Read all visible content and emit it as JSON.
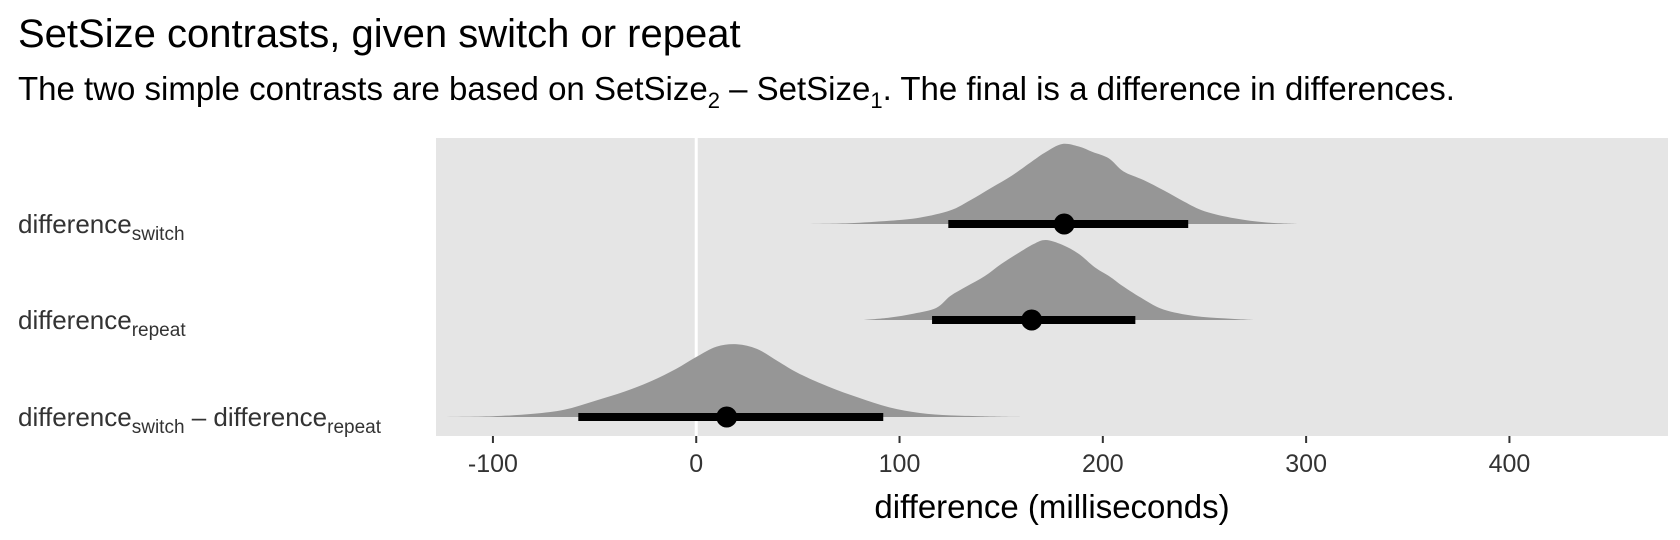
{
  "title": "SetSize contrasts, given switch or repeat",
  "subtitle": {
    "before": "The two simple contrasts are based on SetSize",
    "sub_a": "2",
    "dash": " – SetSize",
    "sub_b": "1",
    "after": ". The final is a difference in differences."
  },
  "chart_data": {
    "type": "halfeye",
    "title": "SetSize contrasts, given switch or repeat",
    "xlabel": "difference (milliseconds)",
    "xlim": [
      -128,
      478
    ],
    "x_ticks": [
      -100,
      0,
      100,
      200,
      300,
      400
    ],
    "x_tick_labels": [
      "-100",
      "0",
      "100",
      "200",
      "300",
      "400"
    ],
    "reference_line": 0,
    "grid": false,
    "panel_background": "#e5e5e5",
    "density_color": "#969696",
    "interval_color": "#000000",
    "rows": [
      {
        "label_base": "difference",
        "label_sub": "switch",
        "point": 181,
        "interval": [
          124,
          242
        ],
        "density": {
          "x": [
            52,
            75,
            95,
            110,
            125,
            135,
            145,
            155,
            165,
            172,
            180,
            188,
            195,
            203,
            210,
            220,
            230,
            240,
            250,
            265,
            280,
            296
          ],
          "y": [
            0,
            0.01,
            0.04,
            0.08,
            0.17,
            0.3,
            0.45,
            0.6,
            0.78,
            0.9,
            1.0,
            0.97,
            0.9,
            0.82,
            0.66,
            0.55,
            0.42,
            0.28,
            0.16,
            0.07,
            0.02,
            0
          ]
        }
      },
      {
        "label_base": "difference",
        "label_sub": "repeat",
        "point": 165,
        "interval": [
          116,
          216
        ],
        "density": {
          "x": [
            82,
            95,
            107,
            118,
            125,
            133,
            142,
            150,
            158,
            166,
            172,
            180,
            188,
            196,
            203,
            210,
            220,
            230,
            245,
            260,
            274
          ],
          "y": [
            0,
            0.03,
            0.08,
            0.15,
            0.3,
            0.42,
            0.55,
            0.7,
            0.83,
            0.95,
            1.0,
            0.94,
            0.83,
            0.66,
            0.55,
            0.42,
            0.26,
            0.13,
            0.05,
            0.02,
            0
          ]
        }
      },
      {
        "label_base": "difference",
        "label_sub": "switch",
        "label_mid": " – difference",
        "label_sub2": "repeat",
        "point": 15,
        "interval": [
          -58,
          92
        ],
        "density": {
          "x": [
            -128,
            -100,
            -80,
            -65,
            -50,
            -35,
            -22,
            -10,
            0,
            10,
            20,
            30,
            40,
            50,
            65,
            80,
            95,
            110,
            125,
            140,
            160
          ],
          "y": [
            0,
            0.01,
            0.04,
            0.09,
            0.2,
            0.32,
            0.45,
            0.6,
            0.75,
            0.88,
            0.91,
            0.85,
            0.7,
            0.55,
            0.38,
            0.24,
            0.12,
            0.05,
            0.02,
            0.01,
            0
          ]
        }
      }
    ]
  }
}
